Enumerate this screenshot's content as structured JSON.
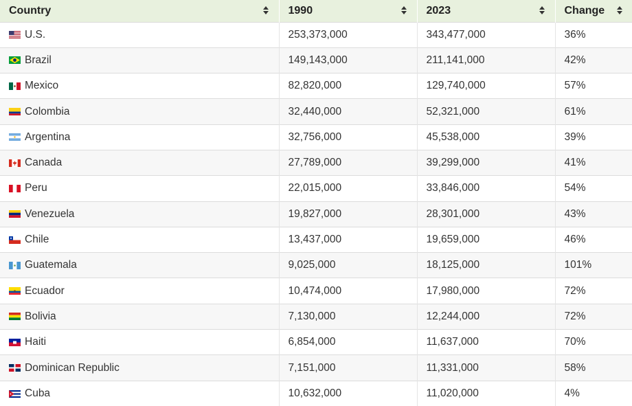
{
  "table": {
    "headers": [
      {
        "label": "Country"
      },
      {
        "label": "1990"
      },
      {
        "label": "2023"
      },
      {
        "label": "Change"
      }
    ],
    "rows": [
      {
        "country": "U.S.",
        "flag_icon": "us-flag-icon",
        "y1990": "253,373,000",
        "y2023": "343,477,000",
        "change": "36%"
      },
      {
        "country": "Brazil",
        "flag_icon": "brazil-flag-icon",
        "y1990": "149,143,000",
        "y2023": "211,141,000",
        "change": "42%"
      },
      {
        "country": "Mexico",
        "flag_icon": "mexico-flag-icon",
        "y1990": "82,820,000",
        "y2023": "129,740,000",
        "change": "57%"
      },
      {
        "country": "Colombia",
        "flag_icon": "colombia-flag-icon",
        "y1990": "32,440,000",
        "y2023": "52,321,000",
        "change": "61%"
      },
      {
        "country": "Argentina",
        "flag_icon": "argentina-flag-icon",
        "y1990": "32,756,000",
        "y2023": "45,538,000",
        "change": "39%"
      },
      {
        "country": "Canada",
        "flag_icon": "canada-flag-icon",
        "y1990": "27,789,000",
        "y2023": "39,299,000",
        "change": "41%"
      },
      {
        "country": "Peru",
        "flag_icon": "peru-flag-icon",
        "y1990": "22,015,000",
        "y2023": "33,846,000",
        "change": "54%"
      },
      {
        "country": "Venezuela",
        "flag_icon": "venezuela-flag-icon",
        "y1990": "19,827,000",
        "y2023": "28,301,000",
        "change": "43%"
      },
      {
        "country": "Chile",
        "flag_icon": "chile-flag-icon",
        "y1990": "13,437,000",
        "y2023": "19,659,000",
        "change": "46%"
      },
      {
        "country": "Guatemala",
        "flag_icon": "guatemala-flag-icon",
        "y1990": "9,025,000",
        "y2023": "18,125,000",
        "change": "101%"
      },
      {
        "country": "Ecuador",
        "flag_icon": "ecuador-flag-icon",
        "y1990": "10,474,000",
        "y2023": "17,980,000",
        "change": "72%"
      },
      {
        "country": "Bolivia",
        "flag_icon": "bolivia-flag-icon",
        "y1990": "7,130,000",
        "y2023": "12,244,000",
        "change": "72%"
      },
      {
        "country": "Haiti",
        "flag_icon": "haiti-flag-icon",
        "y1990": "6,854,000",
        "y2023": "11,637,000",
        "change": "70%"
      },
      {
        "country": "Dominican Republic",
        "flag_icon": "dominican-republic-flag-icon",
        "y1990": "7,151,000",
        "y2023": "11,331,000",
        "change": "58%"
      },
      {
        "country": "Cuba",
        "flag_icon": "cuba-flag-icon",
        "y1990": "10,632,000",
        "y2023": "11,020,000",
        "change": "4%"
      }
    ]
  },
  "colors": {
    "header_background": "#e8f1de",
    "zebra_background": "#f7f7f7",
    "text": "#333333"
  }
}
